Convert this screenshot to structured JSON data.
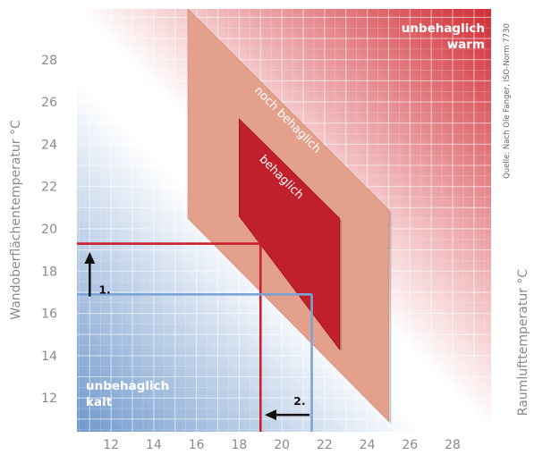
{
  "chart_data": {
    "type": "area",
    "title": "",
    "xlabel": "Raumlufttemperatur °C",
    "ylabel": "Wandoberflächentemperatur °C",
    "xlim": [
      10.4,
      29.8
    ],
    "ylim": [
      10.4,
      30.4
    ],
    "x_ticks": [
      12,
      14,
      16,
      18,
      20,
      22,
      24,
      26,
      28
    ],
    "y_ticks": [
      12,
      14,
      16,
      18,
      20,
      22,
      24,
      26,
      28
    ],
    "grid": true,
    "source": "Quelle: Nach Ole Fanger, ISO-Norm 7730",
    "zones": [
      {
        "label": "noch behaglich",
        "color": "#e2a08d",
        "polygon": [
          [
            15.6,
            30.4
          ],
          [
            25.0,
            20.9
          ],
          [
            25.0,
            10.9
          ],
          [
            15.6,
            20.5
          ]
        ]
      },
      {
        "label": "behaglich",
        "color": "#c0202c",
        "polygon": [
          [
            18.0,
            25.2
          ],
          [
            22.7,
            20.5
          ],
          [
            22.7,
            14.3
          ],
          [
            18.0,
            20.6
          ]
        ]
      }
    ],
    "corner_labels": {
      "warm": [
        "unbehaglich",
        "warm"
      ],
      "cold": [
        "unbehaglich",
        "kalt"
      ]
    },
    "examples": [
      {
        "color": "#c8202c",
        "wall_temp": 19.3,
        "air_temp": 19.0,
        "label": "1."
      },
      {
        "color": "#7ba3d6",
        "wall_temp": 16.9,
        "air_temp": 21.4,
        "label": "2."
      }
    ],
    "arrows": [
      {
        "label": "1.",
        "direction": "up",
        "x": 11.0,
        "from": 16.8,
        "to": 18.9
      },
      {
        "label": "2.",
        "direction": "left",
        "y": 11.2,
        "from": 21.3,
        "to": 19.2
      }
    ],
    "colors": {
      "warm": "#d12d35",
      "cold": "#6f98cc",
      "grid": "#ffffff"
    }
  }
}
